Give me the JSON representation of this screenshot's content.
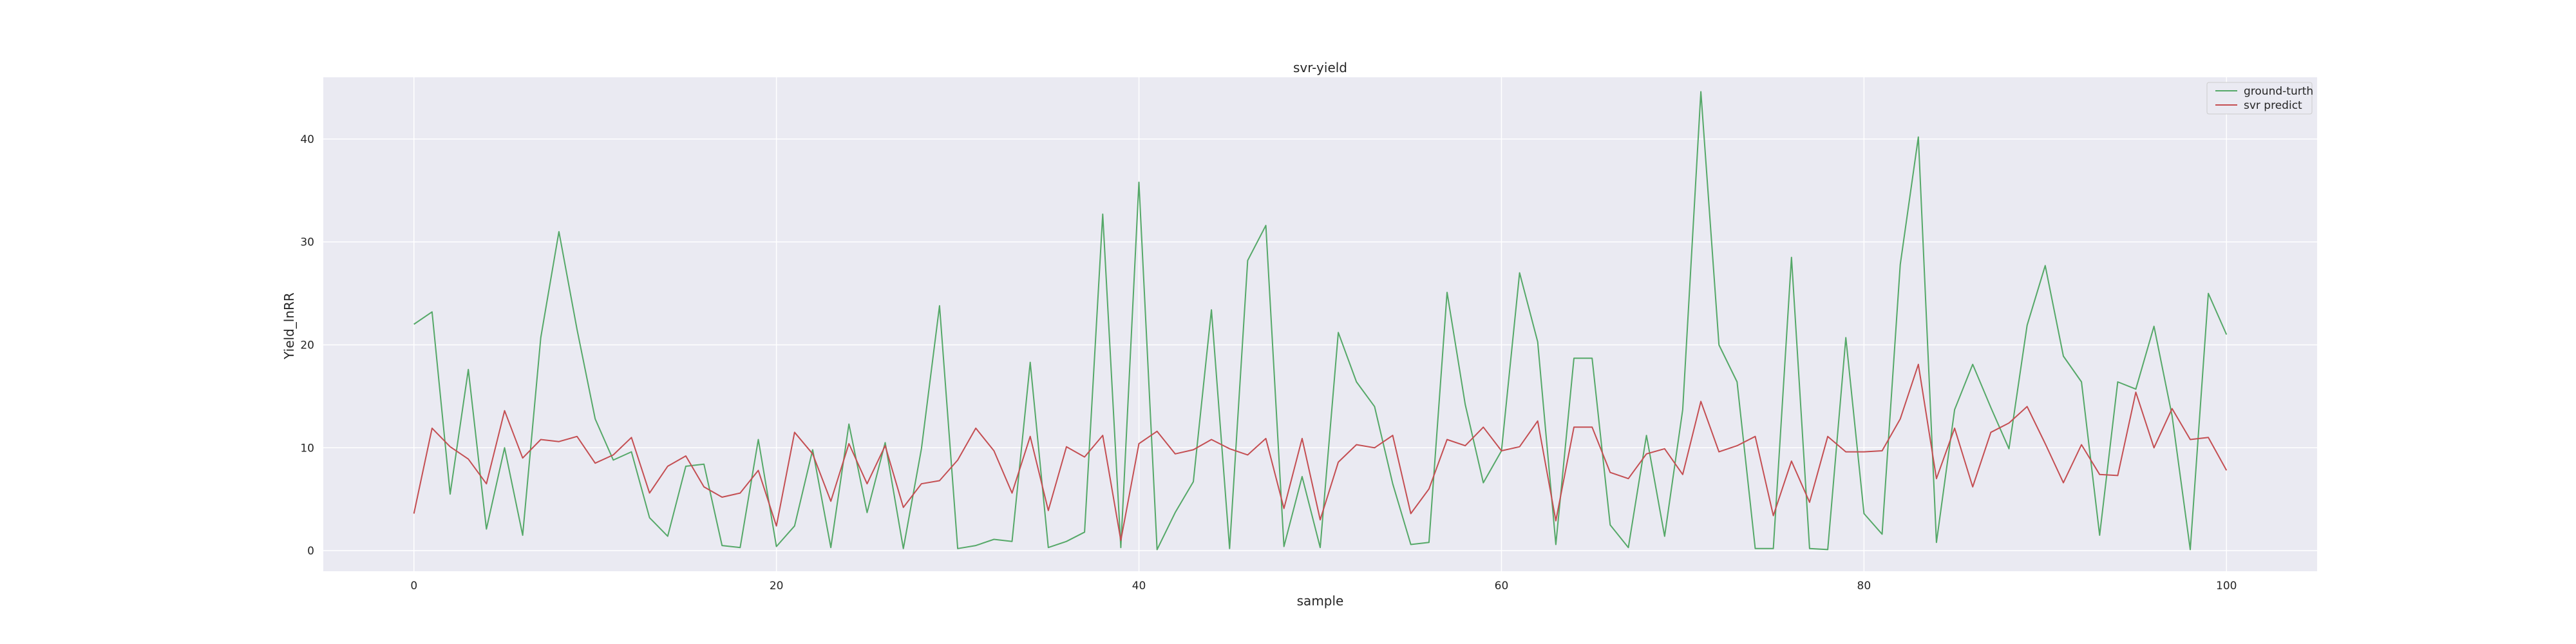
{
  "chart_data": {
    "type": "line",
    "title": "svr-yield",
    "xlabel": "sample",
    "ylabel": "Yield_lnRR",
    "xlim": [
      -5,
      105
    ],
    "ylim": [
      -2,
      46
    ],
    "xticks": [
      0,
      20,
      40,
      60,
      80,
      100
    ],
    "yticks": [
      0,
      10,
      20,
      30,
      40
    ],
    "grid": true,
    "legend_position": "upper right",
    "series": [
      {
        "name": "ground-turth",
        "color": "#55a868",
        "values": [
          22.0,
          23.2,
          5.5,
          17.6,
          2.1,
          10.0,
          1.5,
          20.7,
          31.0,
          21.5,
          12.8,
          8.8,
          9.6,
          3.2,
          1.4,
          8.2,
          8.4,
          0.5,
          0.3,
          10.8,
          0.4,
          2.4,
          9.8,
          0.3,
          12.3,
          3.7,
          10.5,
          0.2,
          9.9,
          23.8,
          0.2,
          0.5,
          1.1,
          0.9,
          18.3,
          0.3,
          0.9,
          1.8,
          32.7,
          0.3,
          35.8,
          0.1,
          3.7,
          6.7,
          23.4,
          0.2,
          28.2,
          31.6,
          0.4,
          7.2,
          0.3,
          21.2,
          16.4,
          14.0,
          6.5,
          0.6,
          0.8,
          25.1,
          14.2,
          6.6,
          9.7,
          27.0,
          20.3,
          0.6,
          18.7,
          18.7,
          2.5,
          0.3,
          11.2,
          1.4,
          13.7,
          44.6,
          20.0,
          16.4,
          0.2,
          0.2,
          28.5,
          0.2,
          0.1,
          20.7,
          3.6,
          1.6,
          27.8,
          40.2,
          0.8,
          13.7,
          18.1,
          13.9,
          9.9,
          21.9,
          27.7,
          18.9,
          16.4,
          1.5,
          16.4,
          15.7,
          21.8,
          13.1,
          0.1,
          25.0,
          21.0
        ]
      },
      {
        "name": "svr predict",
        "color": "#c44e52",
        "values": [
          3.6,
          11.9,
          10.1,
          8.9,
          6.5,
          13.6,
          9.0,
          10.8,
          10.6,
          11.1,
          8.5,
          9.3,
          11.0,
          5.6,
          8.2,
          9.2,
          6.2,
          5.2,
          5.6,
          7.8,
          2.4,
          11.5,
          9.4,
          4.8,
          10.4,
          6.5,
          10.2,
          4.2,
          6.5,
          6.8,
          8.8,
          11.9,
          9.7,
          5.6,
          11.1,
          3.9,
          10.1,
          9.1,
          11.2,
          1.0,
          10.4,
          11.6,
          9.4,
          9.8,
          10.8,
          9.9,
          9.3,
          10.9,
          4.1,
          10.9,
          3.0,
          8.6,
          10.3,
          10.0,
          11.2,
          3.6,
          6.0,
          10.8,
          10.2,
          12.0,
          9.7,
          10.1,
          12.6,
          2.9,
          12.0,
          12.0,
          7.6,
          7.0,
          9.4,
          9.9,
          7.4,
          14.5,
          9.6,
          10.2,
          11.1,
          3.4,
          8.7,
          4.7,
          11.1,
          9.6,
          9.6,
          9.7,
          12.8,
          18.1,
          7.0,
          11.9,
          6.2,
          11.5,
          12.4,
          14.0,
          10.4,
          6.6,
          10.3,
          7.4,
          7.3,
          15.4,
          10.0,
          13.8,
          10.8,
          11.0,
          7.8
        ]
      }
    ]
  }
}
